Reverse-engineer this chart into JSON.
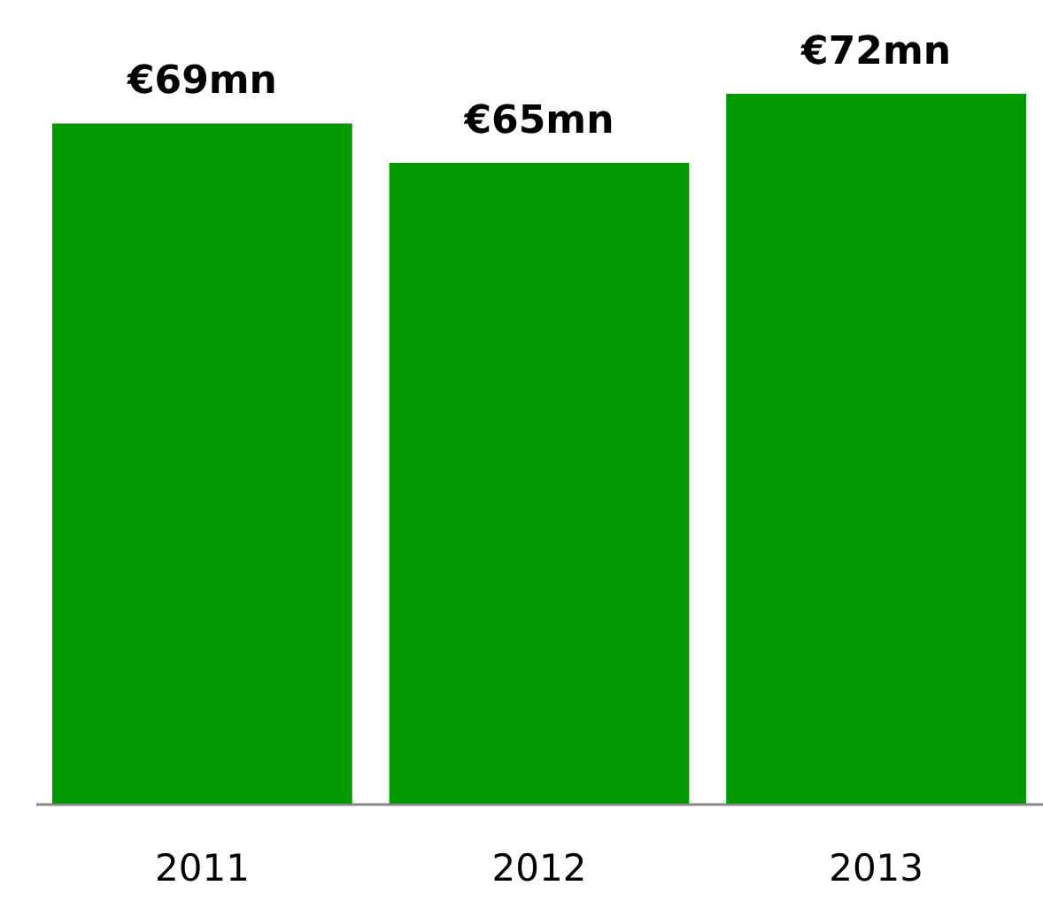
{
  "chart_data": {
    "type": "bar",
    "categories": [
      "2011",
      "2012",
      "2013"
    ],
    "values": [
      69,
      65,
      72
    ],
    "value_labels": [
      "€69mn",
      "€65mn",
      "€72mn"
    ],
    "color": "#009900"
  }
}
